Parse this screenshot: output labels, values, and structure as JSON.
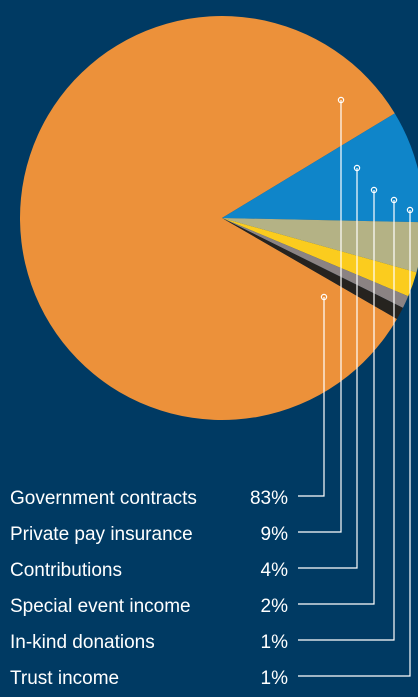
{
  "chart_data": {
    "type": "pie",
    "categories": [
      "Government contracts",
      "Private pay insurance",
      "Contributions",
      "Special event income",
      "In-kind donations",
      "Trust income"
    ],
    "values": [
      83,
      9,
      4,
      2,
      1,
      1
    ],
    "labels": [
      "83%",
      "9%",
      "4%",
      "2%",
      "1%",
      "1%"
    ],
    "colors": [
      "#ec913a",
      "#0f85c9",
      "#b4b285",
      "#fbcc1e",
      "#8b8383",
      "#26231f"
    ],
    "background": "#003a63",
    "legend_placement": "bottom-left, leader lines to slices"
  }
}
